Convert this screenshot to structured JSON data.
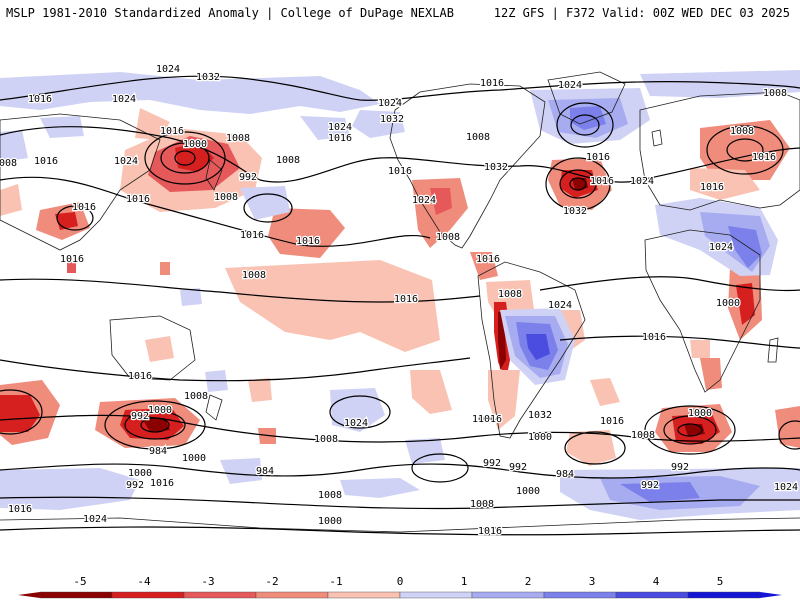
{
  "header": {
    "left_title": "MSLP 1981-2010 Standardized Anomaly | College of DuPage NEXLAB",
    "right_title": "12Z GFS | F372 Valid: 00Z WED DEC 03 2025"
  },
  "colors": {
    "neg5": "#8b0000",
    "neg4": "#d62020",
    "neg3": "#e5595a",
    "neg2": "#f08c7c",
    "neg1": "#f9c2b2",
    "zero": "#ffffff",
    "pos1": "#cfd2f5",
    "pos2": "#a7acf0",
    "pos3": "#7b80ea",
    "pos4": "#4a4de0",
    "pos5": "#1515d6",
    "contour": "#000000",
    "coast": "#202020"
  },
  "colorbar": {
    "ticks": [
      "-5",
      "-4",
      "-3",
      "-2",
      "-1",
      "0",
      "1",
      "2",
      "3",
      "4",
      "5"
    ]
  },
  "isobar_labels": [
    "1024",
    "1032",
    "1024",
    "1016",
    "1008",
    "1000",
    "992",
    "1024",
    "1032",
    "1016",
    "1024",
    "1008",
    "1016",
    "1008",
    "1008",
    "1024",
    "1016",
    "1016",
    "1008",
    "1016",
    "1016",
    "1024",
    "1032",
    "1016",
    "1024",
    "1032",
    "1016",
    "1016",
    "1008",
    "1024",
    "1000",
    "1016",
    "1008",
    "1024",
    "1016",
    "1008",
    "1016",
    "1016",
    "1008",
    "1016",
    "1016",
    "1008",
    "1016",
    "1024",
    "1016",
    "1008",
    "1016",
    "1000",
    "992",
    "984",
    "1000",
    "1008",
    "992",
    "984",
    "1016",
    "1016",
    "1032",
    "1024",
    "1000",
    "1008",
    "1016",
    "992",
    "992",
    "984",
    "1000",
    "1008",
    "1016",
    "1024",
    "1000",
    "992",
    "1016",
    "1000",
    "992",
    "1000",
    "1008",
    "1016",
    "1024"
  ]
}
